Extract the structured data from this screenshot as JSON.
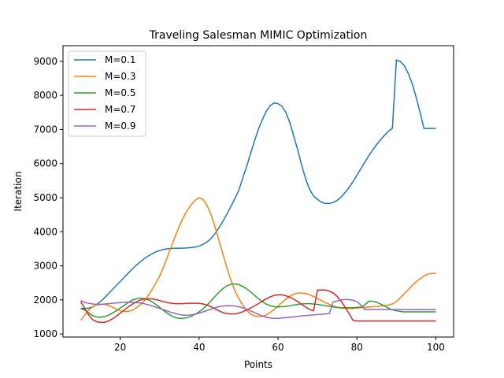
{
  "chart_data": {
    "type": "line",
    "title": "Traveling Salesman MIMIC Optimization",
    "xlabel": "Points",
    "ylabel": "Iteration",
    "xlim": [
      5.5,
      104.5
    ],
    "ylim": [
      910,
      9460
    ],
    "xticks": [
      20,
      40,
      60,
      80,
      100
    ],
    "yticks": [
      1000,
      2000,
      3000,
      4000,
      5000,
      6000,
      7000,
      8000,
      9000
    ],
    "legend": "top-left",
    "grid": false,
    "x": [
      10,
      11,
      12,
      13,
      14,
      15,
      16,
      17,
      18,
      19,
      20,
      21,
      22,
      23,
      24,
      25,
      26,
      27,
      28,
      29,
      30,
      31,
      32,
      33,
      34,
      35,
      36,
      37,
      38,
      39,
      40,
      41,
      42,
      43,
      44,
      45,
      46,
      47,
      48,
      49,
      50,
      51,
      52,
      53,
      54,
      55,
      56,
      57,
      58,
      59,
      60,
      61,
      62,
      63,
      64,
      65,
      66,
      67,
      68,
      69,
      70,
      71,
      72,
      73,
      74,
      75,
      76,
      77,
      78,
      79,
      80,
      81,
      82,
      83,
      84,
      85,
      86,
      87,
      88,
      89,
      90,
      91,
      92,
      93,
      94,
      95,
      96,
      97,
      98,
      99,
      100
    ],
    "series": [
      {
        "name": "M=0.1",
        "color": "#1f77b4",
        "values": [
          1750,
          1750,
          1760,
          1790,
          1860,
          1950,
          2060,
          2180,
          2300,
          2420,
          2540,
          2660,
          2780,
          2900,
          3010,
          3110,
          3200,
          3280,
          3350,
          3410,
          3450,
          3480,
          3500,
          3510,
          3515,
          3518,
          3520,
          3525,
          3535,
          3550,
          3580,
          3630,
          3700,
          3800,
          3940,
          4110,
          4300,
          4510,
          4730,
          4960,
          5200,
          5550,
          5900,
          6280,
          6650,
          7000,
          7280,
          7530,
          7700,
          7780,
          7760,
          7680,
          7500,
          7200,
          6800,
          6400,
          5950,
          5550,
          5250,
          5050,
          4950,
          4870,
          4830,
          4830,
          4860,
          4920,
          5020,
          5150,
          5300,
          5470,
          5660,
          5850,
          6040,
          6230,
          6400,
          6560,
          6700,
          6830,
          6950,
          7040,
          9040,
          9000,
          8870,
          8650,
          8350,
          7950,
          7500,
          7030,
          7030,
          7030,
          7030
        ]
      },
      {
        "name": "M=0.3",
        "color": "#ff7f0e",
        "values": [
          1400,
          1550,
          1700,
          1800,
          1850,
          1870,
          1870,
          1840,
          1790,
          1730,
          1680,
          1660,
          1660,
          1690,
          1760,
          1850,
          1960,
          2110,
          2290,
          2490,
          2700,
          2970,
          3270,
          3580,
          3880,
          4170,
          4420,
          4630,
          4800,
          4920,
          5000,
          4950,
          4780,
          4510,
          4160,
          3760,
          3360,
          2960,
          2600,
          2290,
          2050,
          1860,
          1700,
          1590,
          1530,
          1510,
          1520,
          1560,
          1630,
          1720,
          1820,
          1920,
          2020,
          2110,
          2170,
          2200,
          2200,
          2190,
          2150,
          2100,
          2040,
          1980,
          1920,
          1870,
          1820,
          1780,
          1760,
          1750,
          1750,
          1750,
          1760,
          1770,
          1780,
          1790,
          1800,
          1810,
          1820,
          1830,
          1850,
          1880,
          1950,
          2060,
          2180,
          2300,
          2420,
          2530,
          2620,
          2700,
          2760,
          2780,
          2780
        ]
      },
      {
        "name": "M=0.5",
        "color": "#2ca02c",
        "values": [
          1750,
          1700,
          1620,
          1540,
          1500,
          1490,
          1510,
          1550,
          1610,
          1680,
          1760,
          1840,
          1920,
          1990,
          2030,
          2050,
          2040,
          2010,
          1950,
          1870,
          1780,
          1690,
          1600,
          1530,
          1480,
          1460,
          1460,
          1480,
          1520,
          1580,
          1650,
          1740,
          1850,
          1970,
          2100,
          2220,
          2330,
          2410,
          2460,
          2470,
          2450,
          2400,
          2330,
          2240,
          2140,
          2040,
          1950,
          1880,
          1830,
          1800,
          1790,
          1800,
          1810,
          1830,
          1850,
          1870,
          1880,
          1890,
          1890,
          1880,
          1870,
          1850,
          1830,
          1810,
          1790,
          1780,
          1770,
          1770,
          1770,
          1770,
          1780,
          1790,
          1850,
          1960,
          1960,
          1930,
          1880,
          1820,
          1760,
          1710,
          1680,
          1660,
          1650,
          1650,
          1650,
          1650,
          1650,
          1650,
          1650,
          1650,
          1650
        ]
      },
      {
        "name": "M=0.7",
        "color": "#d62728",
        "values": [
          1950,
          1750,
          1560,
          1420,
          1360,
          1340,
          1340,
          1380,
          1440,
          1520,
          1610,
          1700,
          1790,
          1870,
          1940,
          1990,
          2020,
          2030,
          2030,
          2010,
          1980,
          1950,
          1920,
          1900,
          1890,
          1890,
          1890,
          1900,
          1900,
          1900,
          1900,
          1880,
          1850,
          1800,
          1740,
          1680,
          1630,
          1600,
          1590,
          1590,
          1610,
          1650,
          1700,
          1760,
          1820,
          1890,
          1960,
          2030,
          2090,
          2130,
          2150,
          2150,
          2120,
          2080,
          2020,
          1950,
          1870,
          1790,
          1720,
          1680,
          2290,
          2290,
          2290,
          2260,
          2200,
          2100,
          1960,
          1790,
          1600,
          1400,
          1380,
          1380,
          1380,
          1380,
          1380,
          1380,
          1380,
          1380,
          1380,
          1380,
          1380,
          1380,
          1380,
          1380,
          1380,
          1380,
          1380,
          1380,
          1380,
          1380,
          1380
        ]
      },
      {
        "name": "M=0.9",
        "color": "#9467bd",
        "values": [
          1980,
          1930,
          1900,
          1880,
          1870,
          1870,
          1880,
          1890,
          1900,
          1910,
          1920,
          1930,
          1930,
          1930,
          1920,
          1910,
          1890,
          1860,
          1830,
          1790,
          1750,
          1710,
          1670,
          1630,
          1600,
          1570,
          1550,
          1550,
          1560,
          1580,
          1610,
          1650,
          1690,
          1730,
          1770,
          1800,
          1820,
          1830,
          1830,
          1820,
          1800,
          1770,
          1730,
          1680,
          1630,
          1580,
          1530,
          1490,
          1470,
          1460,
          1460,
          1470,
          1480,
          1490,
          1500,
          1520,
          1530,
          1540,
          1550,
          1560,
          1570,
          1580,
          1590,
          1600,
          1940,
          1970,
          2000,
          2010,
          2010,
          1990,
          1950,
          1850,
          1720,
          1720,
          1720,
          1720,
          1720,
          1720,
          1720,
          1720,
          1720,
          1720,
          1720,
          1720,
          1720,
          1720,
          1720,
          1720,
          1720,
          1720,
          1720
        ]
      }
    ]
  }
}
